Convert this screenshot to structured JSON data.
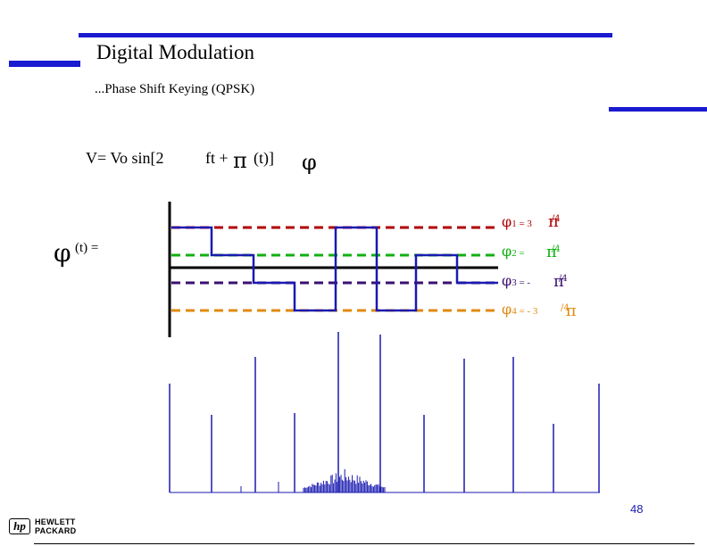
{
  "colors": {
    "accent_blue": "#1a1ad0",
    "phi1": "#b00000",
    "phi2": "#10b010",
    "phi3": "#3a1070",
    "phi4": "#e08a10",
    "signal": "#1a1ab0",
    "axis": "#000000"
  },
  "slide": {
    "title": "Digital Modulation",
    "subtitle": "...Phase Shift Keying (QPSK)",
    "page_number": "48"
  },
  "equation": {
    "lhs": "V= Vo sin[2",
    "ft": "ft +",
    "pi": "π",
    "t_close": "(t)]",
    "phi": "φ"
  },
  "phi_of_t": {
    "phi": "φ",
    "label": "(t) ="
  },
  "levels": [
    {
      "sym": "φ",
      "sub": "1",
      "rhs": "= 3",
      "pi": "π",
      "frac": "/4"
    },
    {
      "sym": "φ",
      "sub": "2",
      "rhs": "=",
      "pi": "π",
      "frac": "/4"
    },
    {
      "sym": "φ",
      "sub": "3",
      "rhs": "= -",
      "pi": "π",
      "frac": "/4"
    },
    {
      "sym": "φ",
      "sub": "4",
      "rhs": "= - 3",
      "pi": "π",
      "frac": "/4"
    }
  ],
  "logo": {
    "mark": "hp",
    "line1": "HEWLETT",
    "line2": "PACKARD"
  }
}
